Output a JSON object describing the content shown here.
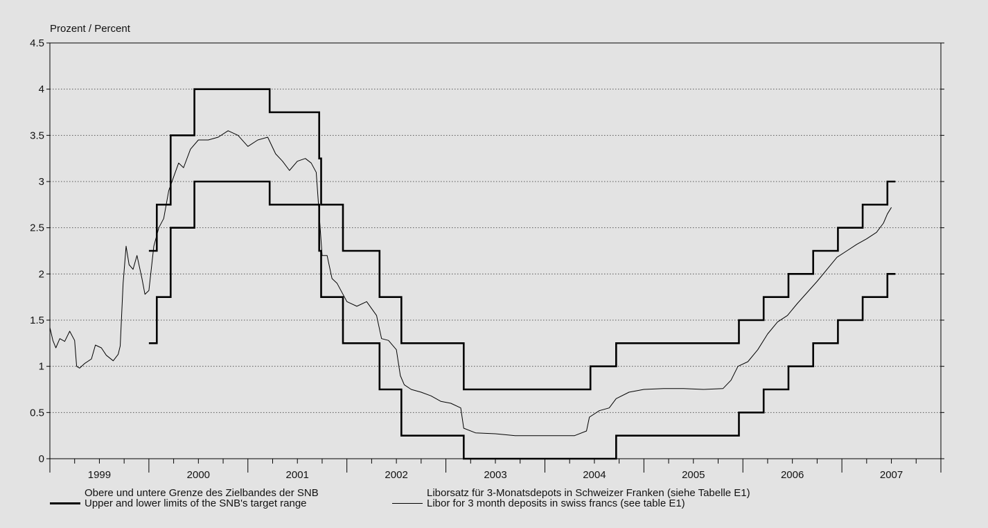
{
  "chart_data": {
    "type": "line",
    "ylabel": "Prozent / Percent",
    "ylim": [
      0,
      4.5
    ],
    "yticks": [
      "0",
      "0.5",
      "1",
      "1.5",
      "2",
      "2.5",
      "3",
      "3.5",
      "4",
      "4.5"
    ],
    "xlim": [
      1999.0,
      2008.0
    ],
    "xticks": [
      "1999",
      "2000",
      "2001",
      "2002",
      "2003",
      "2004",
      "2005",
      "2006",
      "2007"
    ],
    "grid": "horizontal-dotted",
    "legend_position": "bottom",
    "series": [
      {
        "name": "Obere und untere Grenze des Zielbandes der SNB",
        "name2": "Upper and lower limits of the SNB's target range",
        "style": "thick",
        "upper": [
          [
            2000.0,
            2.25
          ],
          [
            2000.08,
            2.75
          ],
          [
            2000.22,
            3.5
          ],
          [
            2000.46,
            4.0
          ],
          [
            2001.22,
            3.75
          ],
          [
            2001.72,
            3.25
          ],
          [
            2001.74,
            2.75
          ],
          [
            2001.96,
            2.25
          ],
          [
            2002.33,
            1.75
          ],
          [
            2002.55,
            1.25
          ],
          [
            2003.18,
            0.75
          ],
          [
            2004.46,
            1.0
          ],
          [
            2004.72,
            1.25
          ],
          [
            2005.96,
            1.5
          ],
          [
            2006.21,
            1.75
          ],
          [
            2006.46,
            2.0
          ],
          [
            2006.71,
            2.25
          ],
          [
            2006.96,
            2.5
          ],
          [
            2007.21,
            2.75
          ],
          [
            2007.46,
            3.0
          ],
          [
            2007.54,
            3.0
          ]
        ],
        "lower": [
          [
            2000.0,
            1.25
          ],
          [
            2000.08,
            1.75
          ],
          [
            2000.22,
            2.5
          ],
          [
            2000.46,
            3.0
          ],
          [
            2001.22,
            2.75
          ],
          [
            2001.72,
            2.25
          ],
          [
            2001.74,
            1.75
          ],
          [
            2001.96,
            1.25
          ],
          [
            2002.33,
            0.75
          ],
          [
            2002.55,
            0.25
          ],
          [
            2003.18,
            0.0
          ],
          [
            2004.72,
            0.25
          ],
          [
            2005.96,
            0.5
          ],
          [
            2006.21,
            0.75
          ],
          [
            2006.46,
            1.0
          ],
          [
            2006.71,
            1.25
          ],
          [
            2006.96,
            1.5
          ],
          [
            2007.21,
            1.75
          ],
          [
            2007.46,
            2.0
          ],
          [
            2007.54,
            2.0
          ]
        ]
      },
      {
        "name": "Liborsatz für 3-Monatsdepots in Schweizer Franken (siehe Tabelle E1)",
        "name2": "Libor for 3 month deposits in swiss francs (see table E1)",
        "style": "thin",
        "points": [
          [
            1999.0,
            1.42
          ],
          [
            1999.03,
            1.28
          ],
          [
            1999.06,
            1.2
          ],
          [
            1999.1,
            1.3
          ],
          [
            1999.15,
            1.27
          ],
          [
            1999.2,
            1.38
          ],
          [
            1999.25,
            1.28
          ],
          [
            1999.27,
            1.0
          ],
          [
            1999.3,
            0.98
          ],
          [
            1999.35,
            1.03
          ],
          [
            1999.42,
            1.08
          ],
          [
            1999.46,
            1.23
          ],
          [
            1999.52,
            1.2
          ],
          [
            1999.57,
            1.12
          ],
          [
            1999.64,
            1.06
          ],
          [
            1999.69,
            1.13
          ],
          [
            1999.71,
            1.22
          ],
          [
            1999.74,
            1.9
          ],
          [
            1999.77,
            2.3
          ],
          [
            1999.8,
            2.1
          ],
          [
            1999.84,
            2.05
          ],
          [
            1999.88,
            2.2
          ],
          [
            1999.93,
            1.95
          ],
          [
            1999.96,
            1.78
          ],
          [
            2000.0,
            1.82
          ],
          [
            2000.05,
            2.3
          ],
          [
            2000.1,
            2.5
          ],
          [
            2000.15,
            2.6
          ],
          [
            2000.2,
            2.9
          ],
          [
            2000.25,
            3.05
          ],
          [
            2000.3,
            3.2
          ],
          [
            2000.35,
            3.15
          ],
          [
            2000.42,
            3.35
          ],
          [
            2000.5,
            3.45
          ],
          [
            2000.6,
            3.45
          ],
          [
            2000.7,
            3.48
          ],
          [
            2000.8,
            3.55
          ],
          [
            2000.9,
            3.5
          ],
          [
            2001.0,
            3.38
          ],
          [
            2001.1,
            3.45
          ],
          [
            2001.2,
            3.48
          ],
          [
            2001.28,
            3.3
          ],
          [
            2001.35,
            3.22
          ],
          [
            2001.42,
            3.12
          ],
          [
            2001.5,
            3.22
          ],
          [
            2001.58,
            3.25
          ],
          [
            2001.64,
            3.2
          ],
          [
            2001.69,
            3.1
          ],
          [
            2001.73,
            2.5
          ],
          [
            2001.75,
            2.2
          ],
          [
            2001.8,
            2.2
          ],
          [
            2001.85,
            1.95
          ],
          [
            2001.9,
            1.9
          ],
          [
            2002.0,
            1.7
          ],
          [
            2002.1,
            1.65
          ],
          [
            2002.2,
            1.7
          ],
          [
            2002.3,
            1.55
          ],
          [
            2002.35,
            1.3
          ],
          [
            2002.42,
            1.28
          ],
          [
            2002.5,
            1.18
          ],
          [
            2002.54,
            0.9
          ],
          [
            2002.58,
            0.8
          ],
          [
            2002.65,
            0.75
          ],
          [
            2002.75,
            0.72
          ],
          [
            2002.85,
            0.68
          ],
          [
            2002.95,
            0.62
          ],
          [
            2003.05,
            0.6
          ],
          [
            2003.15,
            0.55
          ],
          [
            2003.18,
            0.33
          ],
          [
            2003.3,
            0.28
          ],
          [
            2003.5,
            0.27
          ],
          [
            2003.7,
            0.25
          ],
          [
            2003.9,
            0.25
          ],
          [
            2004.1,
            0.25
          ],
          [
            2004.3,
            0.25
          ],
          [
            2004.42,
            0.3
          ],
          [
            2004.45,
            0.45
          ],
          [
            2004.55,
            0.52
          ],
          [
            2004.65,
            0.55
          ],
          [
            2004.72,
            0.65
          ],
          [
            2004.85,
            0.72
          ],
          [
            2005.0,
            0.75
          ],
          [
            2005.2,
            0.76
          ],
          [
            2005.4,
            0.76
          ],
          [
            2005.6,
            0.75
          ],
          [
            2005.8,
            0.76
          ],
          [
            2005.88,
            0.85
          ],
          [
            2005.95,
            1.0
          ],
          [
            2006.05,
            1.05
          ],
          [
            2006.15,
            1.18
          ],
          [
            2006.25,
            1.35
          ],
          [
            2006.35,
            1.48
          ],
          [
            2006.45,
            1.55
          ],
          [
            2006.55,
            1.68
          ],
          [
            2006.65,
            1.8
          ],
          [
            2006.75,
            1.92
          ],
          [
            2006.85,
            2.05
          ],
          [
            2006.95,
            2.18
          ],
          [
            2007.05,
            2.25
          ],
          [
            2007.15,
            2.32
          ],
          [
            2007.25,
            2.38
          ],
          [
            2007.35,
            2.45
          ],
          [
            2007.42,
            2.55
          ],
          [
            2007.46,
            2.65
          ],
          [
            2007.5,
            2.72
          ]
        ]
      }
    ]
  }
}
